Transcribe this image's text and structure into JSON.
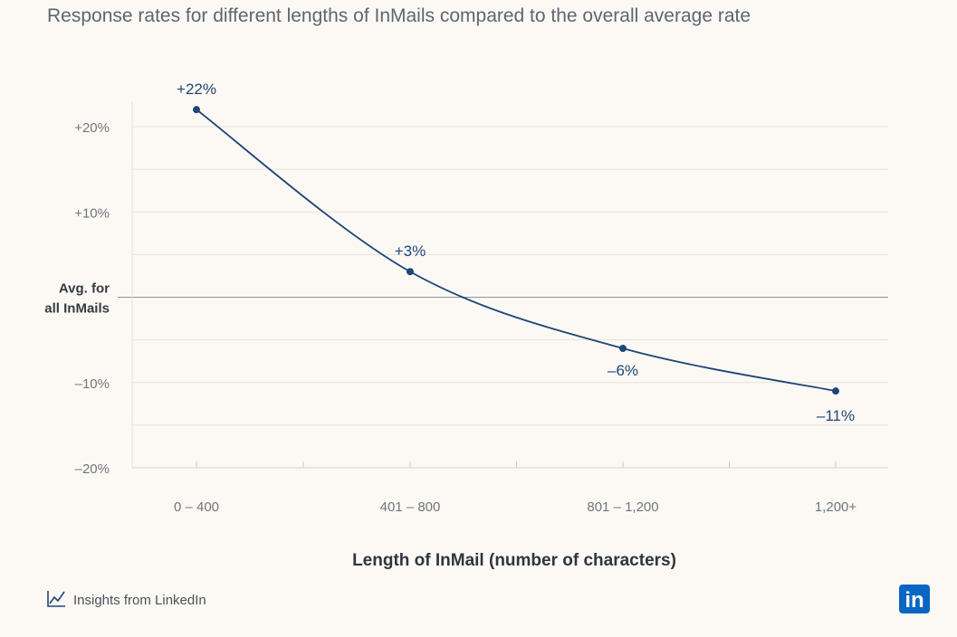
{
  "chart_data": {
    "type": "line",
    "title": "Response rates for different lengths of InMails compared to the overall average rate",
    "xlabel": "Length of InMail (number of characters)",
    "ylabel": "",
    "categories": [
      "0 – 400",
      "401 – 800",
      "801 – 1,200",
      "1,200+"
    ],
    "series": [
      {
        "values": [
          22,
          3,
          -6,
          -11
        ],
        "labels": [
          "+22%",
          "+3%",
          "–6%",
          "–11%"
        ]
      }
    ],
    "ylim": [
      -20,
      25
    ],
    "yticks": [
      {
        "value": 20,
        "label": "+20%"
      },
      {
        "value": 10,
        "label": "+10%"
      },
      {
        "value": 0,
        "label": "Avg. for all InMails"
      },
      {
        "value": -10,
        "label": "–10%"
      },
      {
        "value": -20,
        "label": "–20%"
      }
    ],
    "baseline_label_lines": [
      "Avg. for",
      "all InMails"
    ],
    "grid": true,
    "legend": "none",
    "line_color": "#1f4577"
  },
  "footer": {
    "source_text": "Insights from LinkedIn",
    "source_icon": "trend-line-icon",
    "logo_icon": "linkedin-logo-icon",
    "logo_text": "in",
    "logo_color": "#0a66c2"
  }
}
